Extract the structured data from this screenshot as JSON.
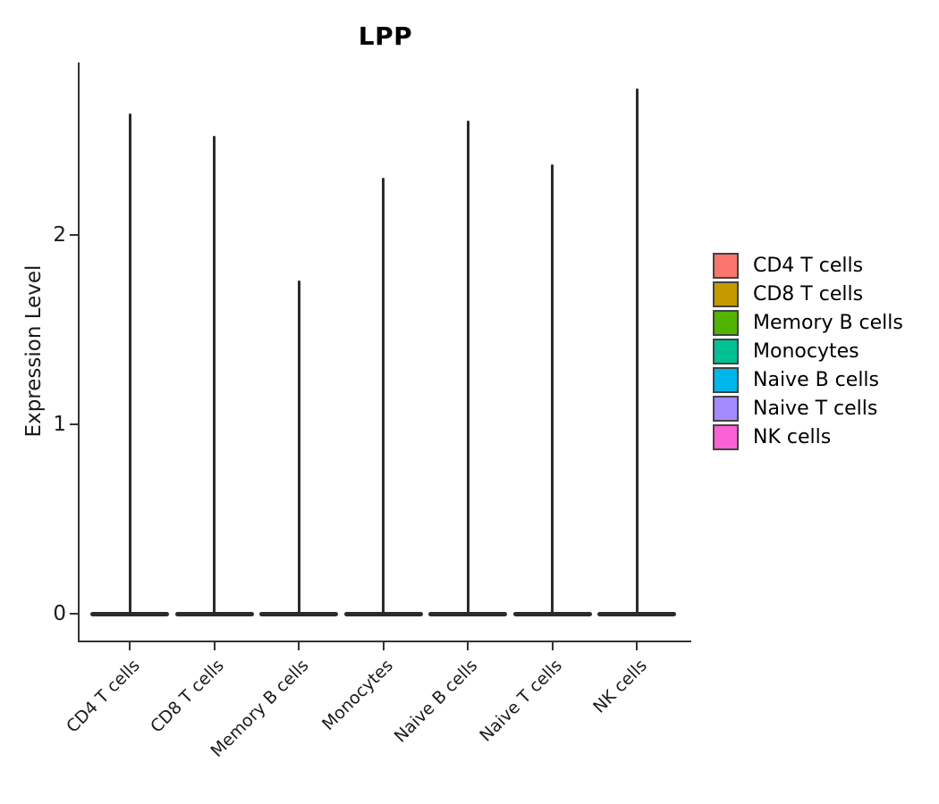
{
  "title": "LPP",
  "y_axis": {
    "label": "Expression Level",
    "tick_labels": [
      "0",
      "1",
      "2"
    ]
  },
  "x_axis": {
    "categories": [
      "CD4 T cells",
      "CD8 T cells",
      "Memory B cells",
      "Monocytes",
      "Naive B cells",
      "Naive T cells",
      "NK cells"
    ]
  },
  "legend": {
    "position": "right",
    "items": [
      {
        "label": "CD4 T cells",
        "color": "#F8766D"
      },
      {
        "label": "CD8 T cells",
        "color": "#C49A00"
      },
      {
        "label": "Memory B cells",
        "color": "#53B400"
      },
      {
        "label": "Monocytes",
        "color": "#00C094"
      },
      {
        "label": "Naive B cells",
        "color": "#00B6EB"
      },
      {
        "label": "Naive T cells",
        "color": "#A58AFF"
      },
      {
        "label": "NK cells",
        "color": "#FB61D7"
      }
    ]
  },
  "chart_data": {
    "type": "violin",
    "title": "LPP",
    "xlabel": "",
    "ylabel": "Expression Level",
    "ylim": [
      0,
      2.9
    ],
    "y_ticks": [
      0,
      1,
      2
    ],
    "grid": false,
    "legend_position": "right",
    "categories": [
      "CD4 T cells",
      "CD8 T cells",
      "Memory B cells",
      "Monocytes",
      "Naive B cells",
      "Naive T cells",
      "NK cells"
    ],
    "series": [
      {
        "name": "CD4 T cells",
        "color": "#F8766D",
        "max_expression": 2.64,
        "density_peak_at": 0
      },
      {
        "name": "CD8 T cells",
        "color": "#C49A00",
        "max_expression": 2.52,
        "density_peak_at": 0
      },
      {
        "name": "Memory B cells",
        "color": "#53B400",
        "max_expression": 1.76,
        "density_peak_at": 0
      },
      {
        "name": "Monocytes",
        "color": "#00C094",
        "max_expression": 2.3,
        "density_peak_at": 0
      },
      {
        "name": "Naive B cells",
        "color": "#00B6EB",
        "max_expression": 2.6,
        "density_peak_at": 0
      },
      {
        "name": "Naive T cells",
        "color": "#A58AFF",
        "max_expression": 2.37,
        "density_peak_at": 0
      },
      {
        "name": "NK cells",
        "color": "#FB61D7",
        "max_expression": 2.77,
        "density_peak_at": 0
      }
    ],
    "shape_note": "Needle-thin violins: expression mass concentrated at 0 (wide flat base) with a sparse thin tail rising to max_expression"
  }
}
